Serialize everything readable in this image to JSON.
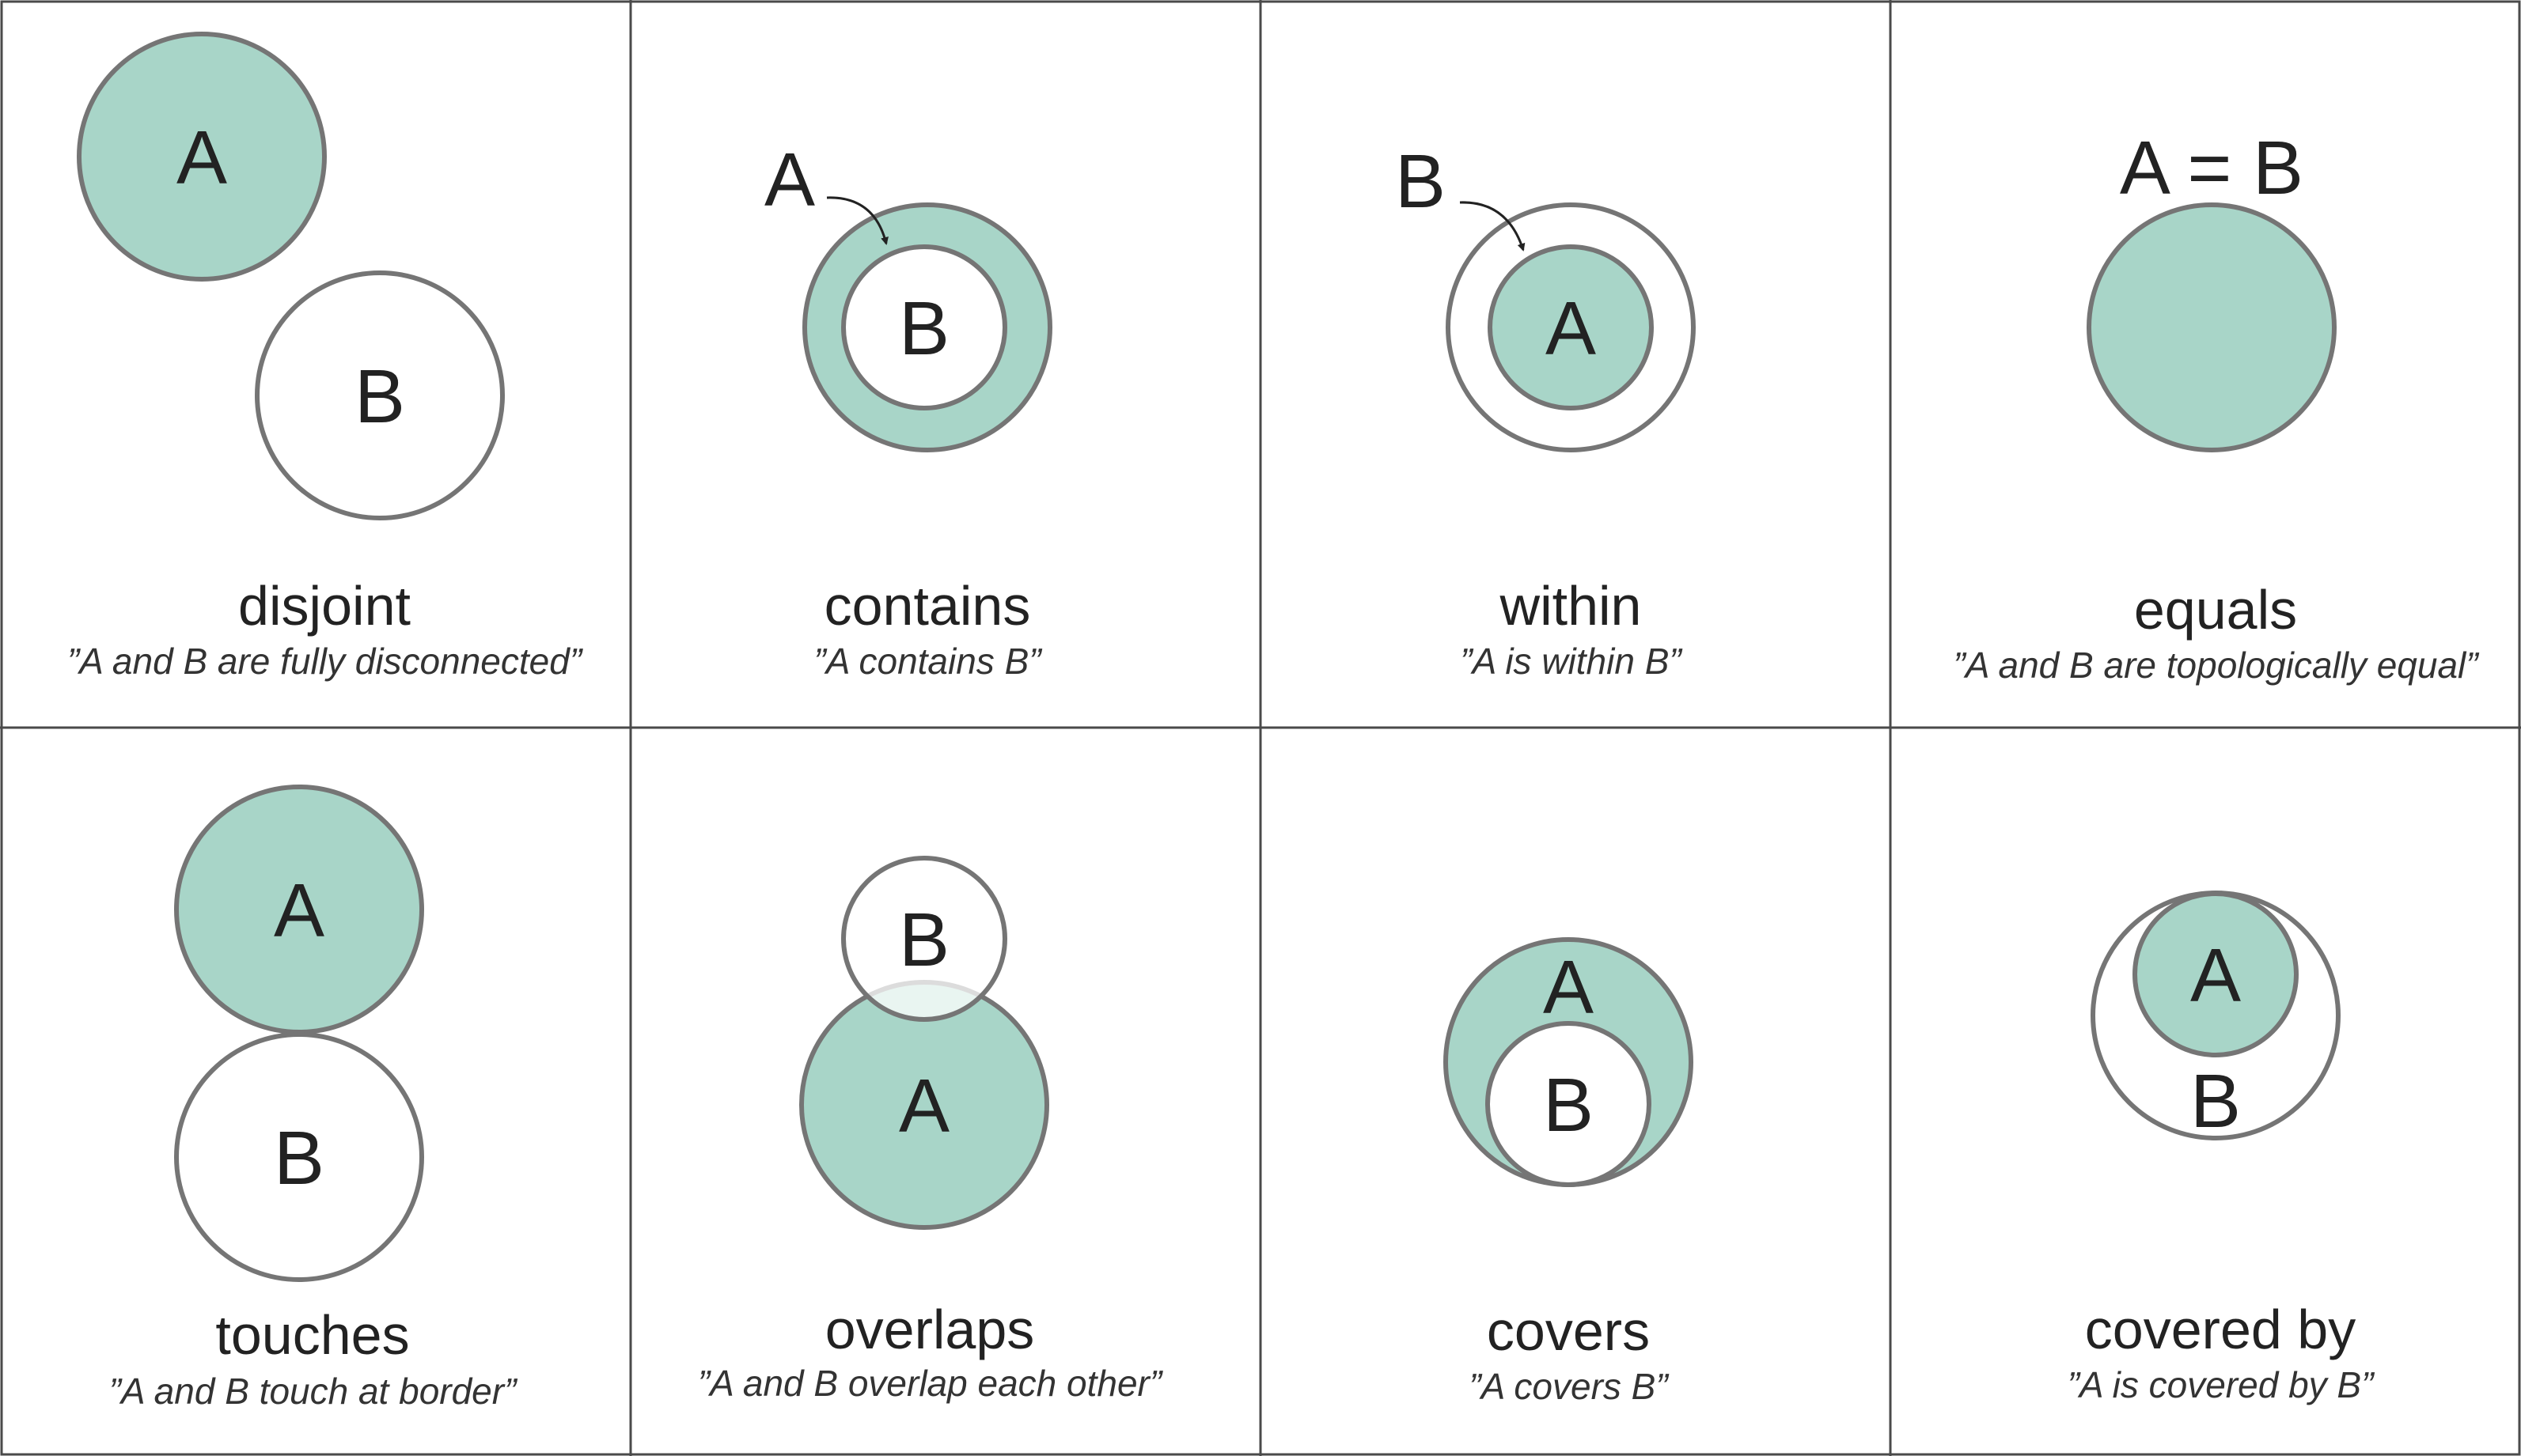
{
  "colors": {
    "fill_a": "#a8d5c8",
    "fill_b": "#ffffff",
    "outline": "#757575",
    "grid": "#4a4a4a",
    "text": "#222222"
  },
  "panels": [
    {
      "id": "disjoint",
      "title": "disjoint",
      "caption": "”A and B are fully disconnected”",
      "labels": {
        "a": "A",
        "b": "B"
      }
    },
    {
      "id": "contains",
      "title": "contains",
      "caption": "”A contains B”",
      "labels": {
        "outer": "A",
        "inner": "B"
      }
    },
    {
      "id": "within",
      "title": "within",
      "caption": "”A is within B”",
      "labels": {
        "outer": "B",
        "inner": "A"
      }
    },
    {
      "id": "equals",
      "title": "equals",
      "caption": "”A and B are topologically equal”",
      "labels": {
        "eq": "A = B"
      }
    },
    {
      "id": "touches",
      "title": "touches",
      "caption": "”A and B touch at border”",
      "labels": {
        "a": "A",
        "b": "B"
      }
    },
    {
      "id": "overlaps",
      "title": "overlaps",
      "caption": "”A and B overlap each other”",
      "labels": {
        "a": "A",
        "b": "B"
      }
    },
    {
      "id": "covers",
      "title": "covers",
      "caption": "”A covers B”",
      "labels": {
        "a": "A",
        "b": "B"
      }
    },
    {
      "id": "covered_by",
      "title": "covered by",
      "caption": "”A is covered by B”",
      "labels": {
        "a": "A",
        "b": "B"
      }
    }
  ]
}
